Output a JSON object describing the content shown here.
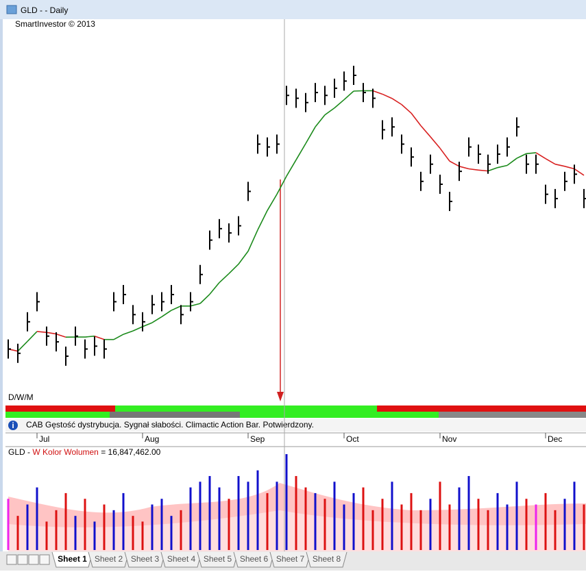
{
  "window": {
    "title": "GLD -  - Daily"
  },
  "chart": {
    "copyright": "SmartInvestor © 2013",
    "period_switch": "D/W/M",
    "closes": [
      116.9,
      116.6,
      118.8,
      120.2,
      117.8,
      117.4,
      116.4,
      117.8,
      116.9,
      117.1,
      116.9,
      120.2,
      120.7,
      119.3,
      118.8,
      120.0,
      120.2,
      120.7,
      119.3,
      120.2,
      122.1,
      124.5,
      125.3,
      125.0,
      125.5,
      127.9,
      131.2,
      131.0,
      131.2,
      134.6,
      134.4,
      134.1,
      134.8,
      134.6,
      135.1,
      135.6,
      136.0,
      134.8,
      134.4,
      132.2,
      132.4,
      131.2,
      130.3,
      128.6,
      129.8,
      128.4,
      127.2,
      129.3,
      131.0,
      130.5,
      129.8,
      130.5,
      131.0,
      132.4,
      129.8,
      129.8,
      127.7,
      127.4,
      128.6,
      129.1,
      127.4
    ],
    "months": [
      {
        "label": "Jul",
        "index": 3
      },
      {
        "label": "Aug",
        "index": 14
      },
      {
        "label": "Sep",
        "index": 25
      },
      {
        "label": "Oct",
        "index": 35
      },
      {
        "label": "Nov",
        "index": 45
      },
      {
        "label": "Dec",
        "index": 56
      }
    ]
  },
  "info": {
    "icon": "i",
    "message": "CAB Gęstość dystrybucja. Sygnał słabości. Climactic Action Bar. Potwierdzony."
  },
  "volume": {
    "symbol": "GLD -",
    "name": "W Kolor Wolumen",
    "sign": "=",
    "value": "16,847,462.00",
    "values": [
      9000000,
      6000000,
      8000000,
      11000000,
      5000000,
      7000000,
      10000000,
      6000000,
      9000000,
      5000000,
      8000000,
      7000000,
      10000000,
      6000000,
      5000000,
      8000000,
      9000000,
      6000000,
      7000000,
      11000000,
      12000000,
      13000000,
      11000000,
      9000000,
      13000000,
      12000000,
      14000000,
      10000000,
      12000000,
      16847462,
      13000000,
      11000000,
      10000000,
      9000000,
      12000000,
      8000000,
      10000000,
      11000000,
      7000000,
      9000000,
      12000000,
      8000000,
      10000000,
      7000000,
      9000000,
      12000000,
      8000000,
      11000000,
      13000000,
      9000000,
      7000000,
      10000000,
      8000000,
      12000000,
      9000000,
      8000000,
      10000000,
      7000000,
      9000000,
      12000000,
      8000000
    ]
  },
  "tabs": [
    "Sheet 1",
    "Sheet 2",
    "Sheet 3",
    "Sheet 4",
    "Sheet 5",
    "Sheet 6",
    "Sheet 7",
    "Sheet 8"
  ]
}
